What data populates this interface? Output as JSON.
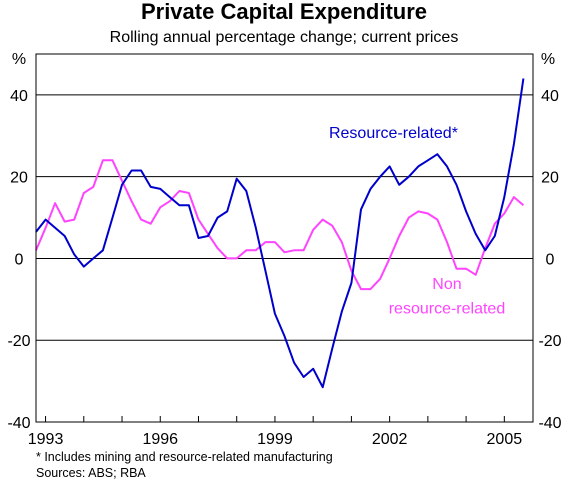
{
  "chart_data": {
    "type": "line",
    "title": "Private Capital Expenditure",
    "subtitle": "Rolling annual percentage change; current prices",
    "y_unit_left": "%",
    "y_unit_right": "%",
    "ylim": [
      -40,
      50
    ],
    "yticks": [
      -40,
      -20,
      0,
      20,
      40
    ],
    "ytick_labels": [
      "-40",
      "-20",
      "0",
      "20",
      "40"
    ],
    "xlim": [
      1992.75,
      2005.75
    ],
    "xticks": [
      1993,
      1996,
      1999,
      2002,
      2005
    ],
    "xtick_labels": [
      "1993",
      "1996",
      "1999",
      "2002",
      "2005"
    ],
    "grid": true,
    "series": [
      {
        "name": "Resource-related*",
        "color": "#0000cc",
        "x": [
          1992.75,
          1993.0,
          1993.25,
          1993.5,
          1993.75,
          1994.0,
          1994.25,
          1994.5,
          1994.75,
          1995.0,
          1995.25,
          1995.5,
          1995.75,
          1996.0,
          1996.25,
          1996.5,
          1996.75,
          1997.0,
          1997.25,
          1997.5,
          1997.75,
          1998.0,
          1998.25,
          1998.5,
          1998.75,
          1999.0,
          1999.25,
          1999.5,
          1999.75,
          2000.0,
          2000.25,
          2000.5,
          2000.75,
          2001.0,
          2001.25,
          2001.5,
          2001.75,
          2002.0,
          2002.25,
          2002.5,
          2002.75,
          2003.0,
          2003.25,
          2003.5,
          2003.75,
          2004.0,
          2004.25,
          2004.5,
          2004.75,
          2005.0,
          2005.25,
          2005.5
        ],
        "values": [
          6.5,
          9.5,
          7.5,
          5.5,
          1.0,
          -2.0,
          0.0,
          2.0,
          10.0,
          18.0,
          21.5,
          21.5,
          17.5,
          17.0,
          15.0,
          13.0,
          13.0,
          5.0,
          5.5,
          10.0,
          11.5,
          19.5,
          16.5,
          7.5,
          -3.0,
          -13.5,
          -19.0,
          -25.5,
          -29.0,
          -27.0,
          -31.5,
          -22.0,
          -13.0,
          -6.0,
          12.0,
          17.0,
          20.0,
          22.5,
          18.0,
          20.0,
          22.5,
          24.0,
          25.5,
          22.5,
          18.0,
          11.5,
          6.0,
          2.0,
          5.5,
          15.0,
          28.0,
          44.0
        ]
      },
      {
        "name": "Non resource-related",
        "color": "#ff44ff",
        "x": [
          1992.75,
          1993.0,
          1993.25,
          1993.5,
          1993.75,
          1994.0,
          1994.25,
          1994.5,
          1994.75,
          1995.0,
          1995.25,
          1995.5,
          1995.75,
          1996.0,
          1996.25,
          1996.5,
          1996.75,
          1997.0,
          1997.25,
          1997.5,
          1997.75,
          1998.0,
          1998.25,
          1998.5,
          1998.75,
          1999.0,
          1999.25,
          1999.5,
          1999.75,
          2000.0,
          2000.25,
          2000.5,
          2000.75,
          2001.0,
          2001.25,
          2001.5,
          2001.75,
          2002.0,
          2002.25,
          2002.5,
          2002.75,
          2003.0,
          2003.25,
          2003.5,
          2003.75,
          2004.0,
          2004.25,
          2004.5,
          2004.75,
          2005.0,
          2005.25,
          2005.5
        ],
        "values": [
          2.0,
          7.5,
          13.5,
          9.0,
          9.5,
          16.0,
          17.5,
          24.0,
          24.0,
          19.0,
          14.0,
          9.5,
          8.5,
          12.5,
          14.0,
          16.5,
          16.0,
          9.5,
          6.0,
          2.5,
          0.0,
          0.0,
          2.0,
          2.0,
          4.0,
          4.0,
          1.5,
          2.0,
          2.0,
          7.0,
          9.5,
          8.0,
          4.0,
          -3.0,
          -7.5,
          -7.5,
          -5.0,
          0.0,
          5.5,
          10.0,
          11.5,
          11.0,
          9.5,
          4.0,
          -2.5,
          -2.5,
          -4.0,
          2.5,
          8.5,
          11.0,
          15.0,
          13.0
        ]
      }
    ],
    "annotations": [
      {
        "text": "Resource-related*",
        "x": 2002.1,
        "y": 29.5
      },
      {
        "text": "Non",
        "x": 2003.5,
        "y": -7.5
      },
      {
        "text": "resource-related",
        "x": 2003.5,
        "y": -13.5
      }
    ],
    "notes": [
      "*   Includes mining and resource-related manufacturing",
      "Sources: ABS; RBA"
    ]
  }
}
